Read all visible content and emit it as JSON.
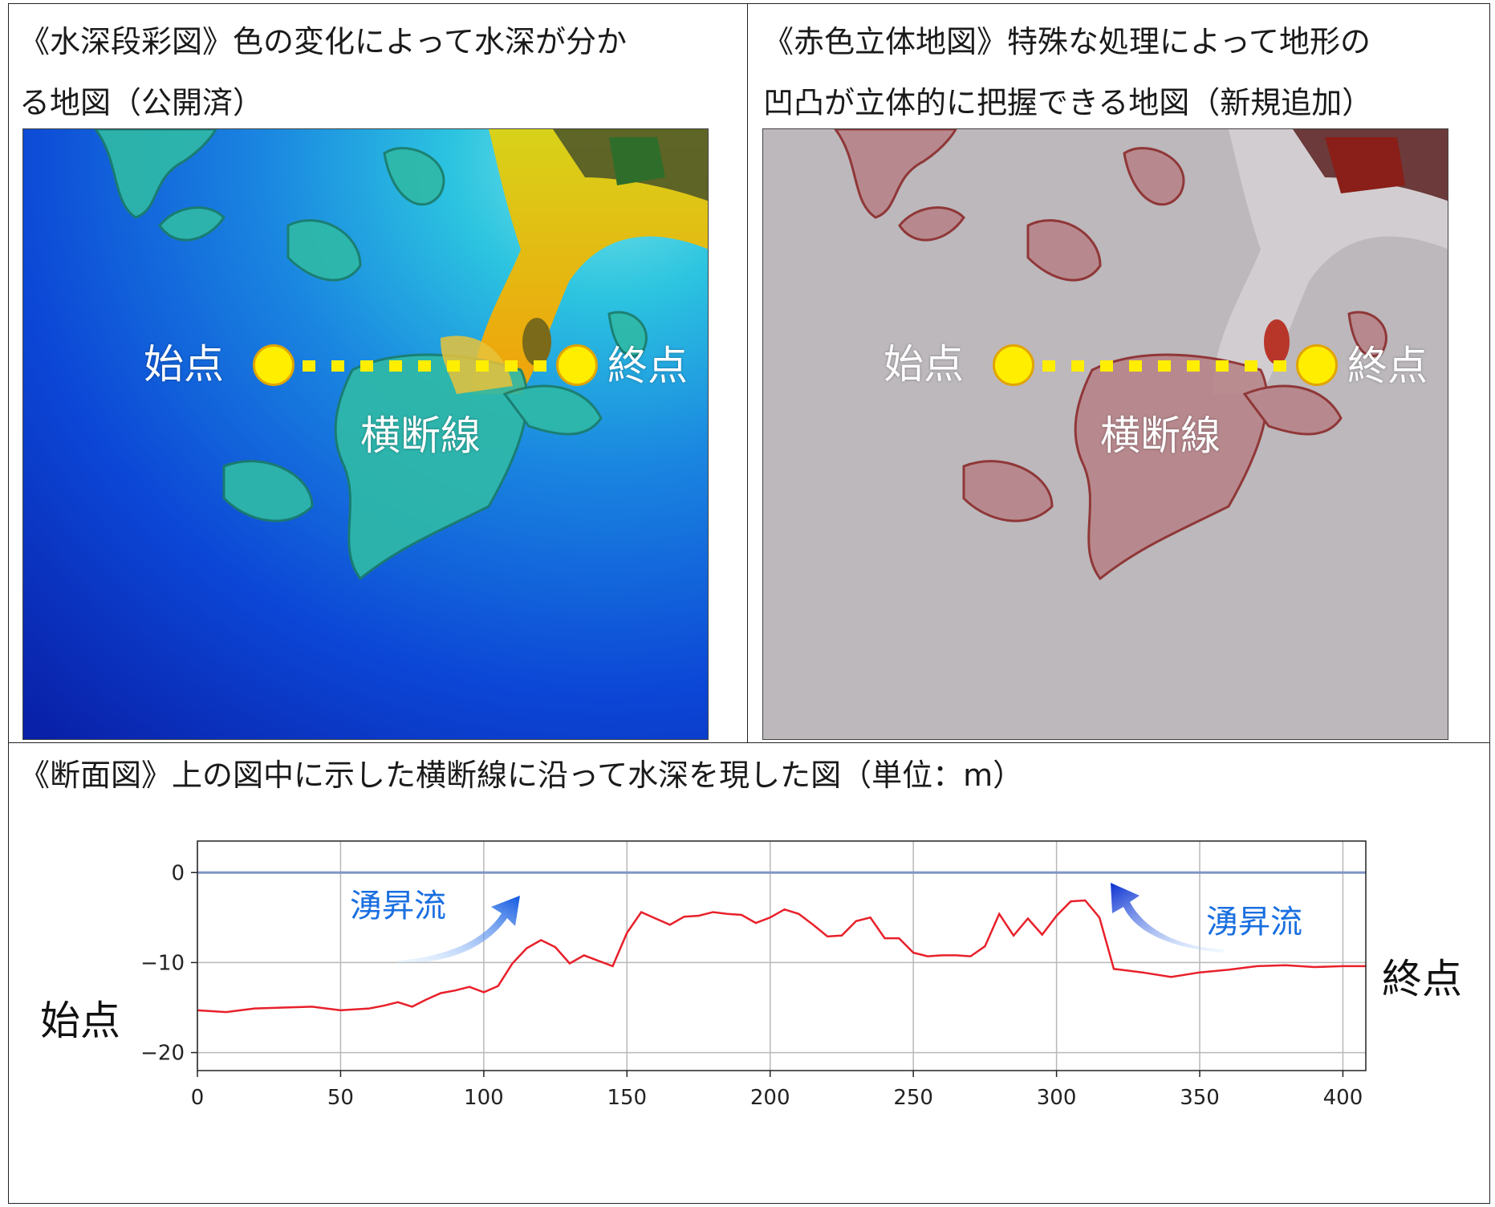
{
  "panels": {
    "depth_map": {
      "caption_line1": "《水深段彩図》色の変化によって水深が分か",
      "caption_line2": "る地図（公開済）",
      "start_label": "始点",
      "end_label": "終点",
      "transect_label": "横断線"
    },
    "relief_map": {
      "caption_line1": "《赤色立体地図》特殊な処理によって地形の",
      "caption_line2": "凹凸が立体的に把握できる地図（新規追加）",
      "start_label": "始点",
      "end_label": "終点",
      "transect_label": "横断線"
    },
    "profile": {
      "caption": "《断面図》上の図中に示した横断線に沿って水深を現した図（単位：m）",
      "start_label": "始点",
      "end_label": "終点",
      "upwelling_left": "湧昇流",
      "upwelling_right": "湧昇流"
    }
  },
  "colors": {
    "profile_line": "#e8202a",
    "zero_line": "#7f95c7",
    "marker_fill": "#ffee00",
    "marker_edge": "#e2a400",
    "upwelling_text": "#1a6fe0"
  },
  "chart_data": {
    "type": "line",
    "x": [
      0,
      10,
      20,
      30,
      40,
      50,
      60,
      65,
      70,
      75,
      80,
      85,
      90,
      95,
      100,
      105,
      110,
      115,
      120,
      125,
      130,
      135,
      140,
      145,
      150,
      155,
      160,
      165,
      170,
      175,
      180,
      185,
      190,
      195,
      200,
      205,
      210,
      215,
      220,
      225,
      230,
      235,
      240,
      245,
      250,
      255,
      260,
      265,
      270,
      275,
      280,
      285,
      290,
      295,
      300,
      305,
      310,
      315,
      320,
      330,
      340,
      350,
      360,
      370,
      380,
      390,
      400,
      408
    ],
    "series": [
      {
        "values": [
          -15.3,
          -15.5,
          -15.1,
          -15.0,
          -14.9,
          -15.3,
          -15.1,
          -14.8,
          -14.4,
          -14.9,
          -14.1,
          -13.4,
          -13.1,
          -12.7,
          -13.3,
          -12.6,
          -10.1,
          -8.4,
          -7.5,
          -8.3,
          -10.1,
          -9.2,
          -9.8,
          -10.4,
          -6.7,
          -4.4,
          -5.1,
          -5.8,
          -4.9,
          -4.8,
          -4.4,
          -4.6,
          -4.7,
          -5.6,
          -5.0,
          -4.1,
          -4.6,
          -5.8,
          -7.1,
          -7.0,
          -5.4,
          -5.0,
          -7.3,
          -7.3,
          -8.9,
          -9.3,
          -9.2,
          -9.2,
          -9.3,
          -8.2,
          -4.6,
          -7.0,
          -5.1,
          -6.9,
          -4.8,
          -3.2,
          -3.1,
          -5.0,
          -10.7,
          -11.1,
          -11.6,
          -11.1,
          -10.8,
          -10.4,
          -10.3,
          -10.5,
          -10.4,
          -10.4
        ]
      }
    ],
    "zero_line": 0,
    "xlim": [
      0,
      408
    ],
    "ylim": [
      -22,
      3.5
    ],
    "xticks": [
      0,
      50,
      100,
      150,
      200,
      250,
      300,
      350,
      400
    ],
    "yticks": [
      0,
      -10,
      -20
    ],
    "ytick_labels": [
      "0",
      "−10",
      "−20"
    ],
    "grid": true
  }
}
